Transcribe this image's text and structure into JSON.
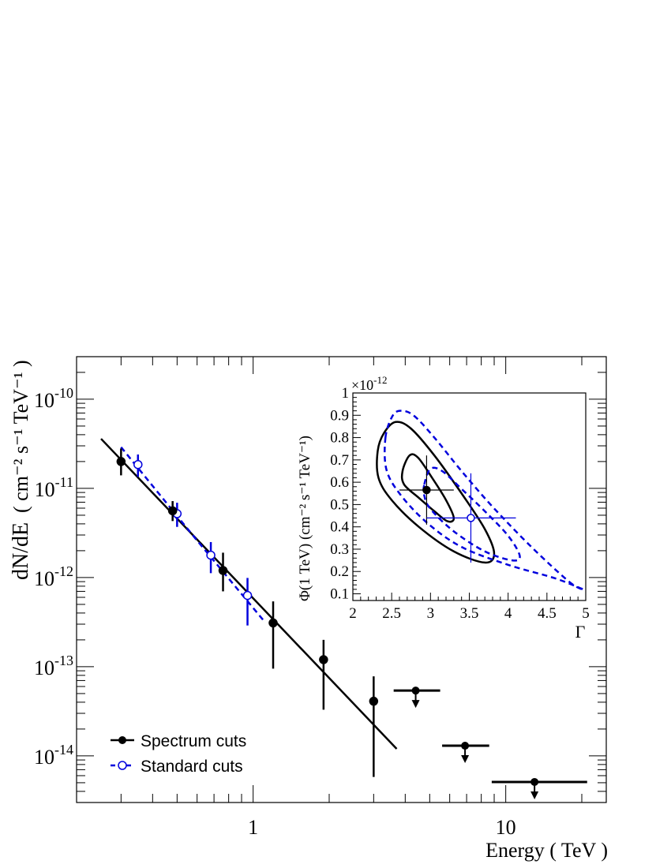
{
  "chart_data": [
    {
      "type": "scatter",
      "xscale": "log",
      "yscale": "log",
      "xlim": [
        0.2,
        25
      ],
      "ylim": [
        3e-15,
        3e-10
      ],
      "xlabel": "Energy ( TeV )",
      "ylabel_main": "dN/dE",
      "ylabel_units": "( cm⁻² s⁻¹ TeV⁻¹ )",
      "x_tick_labels": [
        {
          "value": 1,
          "label": "1"
        },
        {
          "value": 10,
          "label": "10"
        }
      ],
      "y_tick_labels": [
        {
          "value": 1e-10,
          "base": "10",
          "exp": "-10"
        },
        {
          "value": 1e-11,
          "base": "10",
          "exp": "-11"
        },
        {
          "value": 1e-12,
          "base": "10",
          "exp": "-12"
        },
        {
          "value": 1e-13,
          "base": "10",
          "exp": "-13"
        },
        {
          "value": 1e-14,
          "base": "10",
          "exp": "-14"
        }
      ],
      "legend_position": "bottom-left",
      "series": [
        {
          "name": "Spectrum cuts",
          "color": "#000000",
          "marker": "filled-circle",
          "points": [
            {
              "x": 0.3,
              "y": 2e-11,
              "ylo": 1.4e-11,
              "yhi": 2.8e-11
            },
            {
              "x": 0.48,
              "y": 5.6e-12,
              "ylo": 4.3e-12,
              "yhi": 7.2e-12
            },
            {
              "x": 0.76,
              "y": 1.2e-12,
              "ylo": 7e-13,
              "yhi": 1.9e-12
            },
            {
              "x": 1.2,
              "y": 3.1e-13,
              "ylo": 9.5e-14,
              "yhi": 5.4e-13
            },
            {
              "x": 1.9,
              "y": 1.2e-13,
              "ylo": 3.3e-14,
              "yhi": 2e-13
            },
            {
              "x": 3.0,
              "y": 4.1e-14,
              "ylo": 5.8e-15,
              "yhi": 7.8e-14
            }
          ],
          "upper_limits": [
            {
              "x": 4.4,
              "xlo": 3.6,
              "xhi": 5.5,
              "y": 5.4e-14
            },
            {
              "x": 6.9,
              "xlo": 5.6,
              "xhi": 8.6,
              "y": 1.3e-14
            },
            {
              "x": 13,
              "xlo": 8.8,
              "xhi": 21,
              "y": 5.1e-15
            }
          ],
          "fit": {
            "x0": 0.25,
            "y0": 3.6e-11,
            "x1": 3.7,
            "y1": 1.2e-14
          }
        },
        {
          "name": "Standard cuts",
          "color": "#0000dd",
          "marker": "open-circle",
          "line": "dashed",
          "points": [
            {
              "x": 0.35,
              "y": 1.85e-11,
              "ylo": 1.35e-11,
              "yhi": 2.4e-11
            },
            {
              "x": 0.5,
              "y": 5.2e-12,
              "ylo": 3.7e-12,
              "yhi": 6.9e-12
            },
            {
              "x": 0.68,
              "y": 1.78e-12,
              "ylo": 1.12e-12,
              "yhi": 2.5e-12
            },
            {
              "x": 0.95,
              "y": 6.3e-13,
              "ylo": 2.9e-13,
              "yhi": 9.9e-13
            }
          ],
          "fit_band": [
            {
              "x": 0.3,
              "y": 2.9e-11
            },
            {
              "x": 0.6,
              "y": 2.6e-12
            },
            {
              "x": 1.1,
              "y": 3.3e-13
            }
          ]
        }
      ]
    },
    {
      "type": "scatter",
      "role": "inset contour",
      "xlim": [
        2,
        5
      ],
      "ylim": [
        0.07,
        1.0
      ],
      "xlabel": "Γ",
      "ylabel": "Φ(1 TeV) (cm⁻² s⁻¹ TeV⁻¹)",
      "yexponent_label": "×10",
      "yexponent_value": "-12",
      "x_ticks": [
        {
          "value": 2,
          "label": "2"
        },
        {
          "value": 2.5,
          "label": "2.5"
        },
        {
          "value": 3,
          "label": "3"
        },
        {
          "value": 3.5,
          "label": "3.5"
        },
        {
          "value": 4,
          "label": "4"
        },
        {
          "value": 4.5,
          "label": "4.5"
        },
        {
          "value": 5,
          "label": "5"
        }
      ],
      "y_ticks": [
        {
          "value": 0.1,
          "label": "0.1"
        },
        {
          "value": 0.2,
          "label": "0.2"
        },
        {
          "value": 0.3,
          "label": "0.3"
        },
        {
          "value": 0.4,
          "label": "0.4"
        },
        {
          "value": 0.5,
          "label": "0.5"
        },
        {
          "value": 0.6,
          "label": "0.6"
        },
        {
          "value": 0.7,
          "label": "0.7"
        },
        {
          "value": 0.8,
          "label": "0.8"
        },
        {
          "value": 0.9,
          "label": "0.9"
        },
        {
          "value": 1,
          "label": "1"
        }
      ],
      "best_fit": [
        {
          "series": "Spectrum cuts",
          "color": "#000000",
          "marker": "filled-circle",
          "gamma": 2.95,
          "phi": 0.565,
          "gamma_lo": 2.6,
          "gamma_hi": 3.3,
          "phi_lo": 0.41,
          "phi_hi": 0.72
        },
        {
          "series": "Standard cuts",
          "color": "#0000dd",
          "marker": "open-circle",
          "gamma": 3.52,
          "phi": 0.44,
          "gamma_lo": 2.95,
          "gamma_hi": 4.1,
          "phi_lo": 0.24,
          "phi_hi": 0.64
        }
      ],
      "contours": [
        {
          "series": "Spectrum cuts",
          "level": "outer",
          "color": "#000000",
          "style": "solid",
          "points": [
            [
              2.32,
              0.74
            ],
            [
              2.4,
              0.82
            ],
            [
              2.55,
              0.87
            ],
            [
              2.75,
              0.84
            ],
            [
              3.05,
              0.72
            ],
            [
              3.4,
              0.55
            ],
            [
              3.7,
              0.39
            ],
            [
              3.82,
              0.28
            ],
            [
              3.7,
              0.24
            ],
            [
              3.3,
              0.29
            ],
            [
              2.85,
              0.4
            ],
            [
              2.5,
              0.52
            ],
            [
              2.33,
              0.62
            ]
          ]
        },
        {
          "series": "Spectrum cuts",
          "level": "inner",
          "color": "#000000",
          "style": "solid",
          "points": [
            [
              2.64,
              0.65
            ],
            [
              2.73,
              0.72
            ],
            [
              2.84,
              0.71
            ],
            [
              3.02,
              0.62
            ],
            [
              3.2,
              0.52
            ],
            [
              3.3,
              0.44
            ],
            [
              3.22,
              0.425
            ],
            [
              3.05,
              0.47
            ],
            [
              2.85,
              0.53
            ],
            [
              2.66,
              0.59
            ]
          ]
        },
        {
          "series": "Standard cuts",
          "level": "outer",
          "color": "#0000dd",
          "style": "dashed",
          "points": [
            [
              2.42,
              0.8
            ],
            [
              2.5,
              0.89
            ],
            [
              2.6,
              0.92
            ],
            [
              2.78,
              0.9
            ],
            [
              3.05,
              0.8
            ],
            [
              3.4,
              0.65
            ],
            [
              3.8,
              0.49
            ],
            [
              4.3,
              0.31
            ],
            [
              4.8,
              0.15
            ],
            [
              4.97,
              0.12
            ],
            [
              4.6,
              0.17
            ],
            [
              4.0,
              0.23
            ],
            [
              3.4,
              0.31
            ],
            [
              2.95,
              0.42
            ],
            [
              2.6,
              0.55
            ],
            [
              2.43,
              0.66
            ]
          ]
        },
        {
          "series": "Standard cuts",
          "level": "inner",
          "color": "#0000dd",
          "style": "dashed",
          "points": [
            [
              2.92,
              0.59
            ],
            [
              3.0,
              0.66
            ],
            [
              3.15,
              0.65
            ],
            [
              3.4,
              0.57
            ],
            [
              3.7,
              0.47
            ],
            [
              4.0,
              0.36
            ],
            [
              4.15,
              0.27
            ],
            [
              4.05,
              0.25
            ],
            [
              3.7,
              0.29
            ],
            [
              3.3,
              0.38
            ],
            [
              3.0,
              0.48
            ],
            [
              2.92,
              0.54
            ]
          ]
        }
      ]
    }
  ]
}
